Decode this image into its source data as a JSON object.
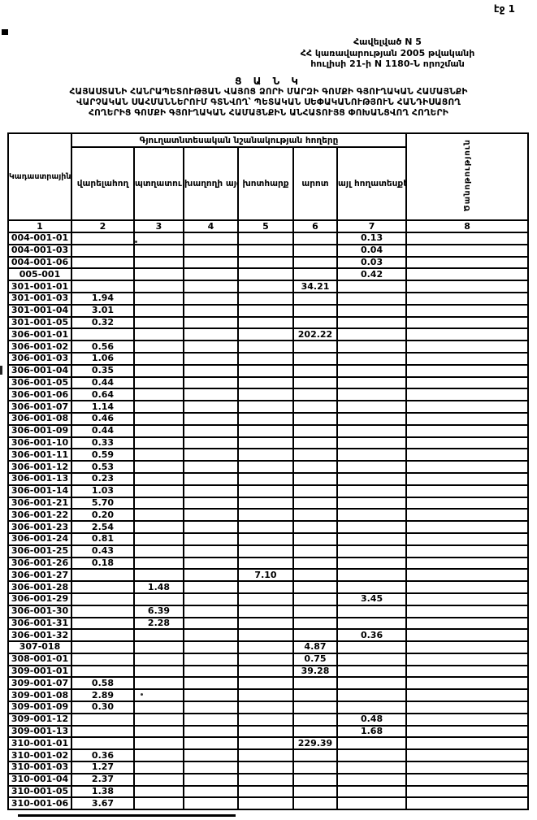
{
  "page": {
    "number_label": "էջ 1"
  },
  "annex": {
    "line1": "Հավելված N 5",
    "line2": "ՀՀ կառավարության 2005 թվականի",
    "line3": "հուլիսի 21-ի N 1180-Ն որոշման"
  },
  "title": {
    "heading": "Ց Ա Ն Կ",
    "line1": "ՀԱՅԱՍՏԱՆԻ ՀԱՆՐԱՊԵՏՈՒԹՅԱՆ ՎԱՅՈՑ ՁՈՐԻ ՄԱՐԶԻ ԳՈՄՔԻ ԳՅՈՒՂԱԿԱՆ ՀԱՄԱՅՆՔԻ",
    "line2": "ՎԱՐՉԱԿԱՆ ՍԱՀՄԱՆՆԵՐՈՒՄ ԳՏՆՎՈՂ՝ ՊԵՏԱԿԱՆ ՍԵՓԱԿԱՆՈՒԹՅՈՒՆ ՀԱՆԴԻՍԱՑՈՂ",
    "line3": "ՀՈՂԵՐԻՑ ԳՈՄՔԻ ԳՅՈՒՂԱԿԱՆ ՀԱՄԱՅՆՔԻՆ ԱՆՀԱՏՈՒՅՑ ՓՈԽԱՆՑՎՈՂ ՀՈՂԵՐԻ",
    "colors": {
      "ink": "#000000",
      "paper": "#ffffff"
    }
  },
  "table": {
    "col1_header": "Կադաստրային ծածկագիր",
    "group_header": "Գյուղատնտեսական նշանակության հողերը",
    "sub_headers": [
      "վարելահող",
      "պտղատու այգի",
      "խաղողի այգի",
      "խոտհարք",
      "արոտ",
      "այլ հողատեսքեր"
    ],
    "note_header": "Ծանոթություն",
    "column_numbers": [
      "1",
      "2",
      "3",
      "4",
      "5",
      "6",
      "7",
      "8"
    ],
    "rows": [
      {
        "code": "004-001-01",
        "values": [
          "",
          "",
          "",
          "",
          "",
          "0.13",
          ""
        ]
      },
      {
        "code": "004-001-03",
        "values": [
          "",
          "",
          "",
          "",
          "",
          "0.04",
          ""
        ]
      },
      {
        "code": "004-001-06",
        "values": [
          "",
          "",
          "",
          "",
          "",
          "0.03",
          ""
        ]
      },
      {
        "code": "005-001",
        "values": [
          "",
          "",
          "",
          "",
          "",
          "0.42",
          ""
        ]
      },
      {
        "code": "301-001-01",
        "values": [
          "",
          "",
          "",
          "",
          "34.21",
          "",
          ""
        ]
      },
      {
        "code": "301-001-03",
        "values": [
          "1.94",
          "",
          "",
          "",
          "",
          "",
          ""
        ]
      },
      {
        "code": "301-001-04",
        "values": [
          "3.01",
          "",
          "",
          "",
          "",
          "",
          ""
        ]
      },
      {
        "code": "301-001-05",
        "values": [
          "0.32",
          "",
          "",
          "",
          "",
          "",
          ""
        ]
      },
      {
        "code": "306-001-01",
        "values": [
          "",
          "",
          "",
          "",
          "202.22",
          "",
          ""
        ]
      },
      {
        "code": "306-001-02",
        "values": [
          "0.56",
          "",
          "",
          "",
          "",
          "",
          ""
        ]
      },
      {
        "code": "306-001-03",
        "values": [
          "1.06",
          "",
          "",
          "",
          "",
          "",
          ""
        ]
      },
      {
        "code": "306-001-04",
        "values": [
          "0.35",
          "",
          "",
          "",
          "",
          "",
          ""
        ]
      },
      {
        "code": "306-001-05",
        "values": [
          "0.44",
          "",
          "",
          "",
          "",
          "",
          ""
        ]
      },
      {
        "code": "306-001-06",
        "values": [
          "0.64",
          "",
          "",
          "",
          "",
          "",
          ""
        ]
      },
      {
        "code": "306-001-07",
        "values": [
          "1.14",
          "",
          "",
          "",
          "",
          "",
          ""
        ]
      },
      {
        "code": "306-001-08",
        "values": [
          "0.46",
          "",
          "",
          "",
          "",
          "",
          ""
        ]
      },
      {
        "code": "306-001-09",
        "values": [
          "0.44",
          "",
          "",
          "",
          "",
          "",
          ""
        ]
      },
      {
        "code": "306-001-10",
        "values": [
          "0.33",
          "",
          "",
          "",
          "",
          "",
          ""
        ]
      },
      {
        "code": "306-001-11",
        "values": [
          "0.59",
          "",
          "",
          "",
          "",
          "",
          ""
        ]
      },
      {
        "code": "306-001-12",
        "values": [
          "0.53",
          "",
          "",
          "",
          "",
          "",
          ""
        ]
      },
      {
        "code": "306-001-13",
        "values": [
          "0.23",
          "",
          "",
          "",
          "",
          "",
          ""
        ]
      },
      {
        "code": "306-001-14",
        "values": [
          "1.03",
          "",
          "",
          "",
          "",
          "",
          ""
        ]
      },
      {
        "code": "306-001-21",
        "values": [
          "5.70",
          "",
          "",
          "",
          "",
          "",
          ""
        ]
      },
      {
        "code": "306-001-22",
        "values": [
          "0.20",
          "",
          "",
          "",
          "",
          "",
          ""
        ]
      },
      {
        "code": "306-001-23",
        "values": [
          "2.54",
          "",
          "",
          "",
          "",
          "",
          ""
        ]
      },
      {
        "code": "306-001-24",
        "values": [
          "0.81",
          "",
          "",
          "",
          "",
          "",
          ""
        ]
      },
      {
        "code": "306-001-25",
        "values": [
          "0.43",
          "",
          "",
          "",
          "",
          "",
          ""
        ]
      },
      {
        "code": "306-001-26",
        "values": [
          "0.18",
          "",
          "",
          "",
          "",
          "",
          ""
        ]
      },
      {
        "code": "306-001-27",
        "values": [
          "",
          "",
          "",
          "7.10",
          "",
          "",
          ""
        ]
      },
      {
        "code": "306-001-28",
        "values": [
          "",
          "1.48",
          "",
          "",
          "",
          "",
          ""
        ]
      },
      {
        "code": "306-001-29",
        "values": [
          "",
          "",
          "",
          "",
          "",
          "3.45",
          ""
        ]
      },
      {
        "code": "306-001-30",
        "values": [
          "",
          "6.39",
          "",
          "",
          "",
          "",
          ""
        ]
      },
      {
        "code": "306-001-31",
        "values": [
          "",
          "2.28",
          "",
          "",
          "",
          "",
          ""
        ]
      },
      {
        "code": "306-001-32",
        "values": [
          "",
          "",
          "",
          "",
          "",
          "0.36",
          ""
        ]
      },
      {
        "code": "307-018",
        "values": [
          "",
          "",
          "",
          "",
          "4.87",
          "",
          ""
        ]
      },
      {
        "code": "308-001-01",
        "values": [
          "",
          "",
          "",
          "",
          "0.75",
          "",
          ""
        ]
      },
      {
        "code": "309-001-01",
        "values": [
          "",
          "",
          "",
          "",
          "39.28",
          "",
          ""
        ]
      },
      {
        "code": "309-001-07",
        "values": [
          "0.58",
          "",
          "",
          "",
          "",
          "",
          ""
        ]
      },
      {
        "code": "309-001-08",
        "values": [
          "2.89",
          "",
          "",
          "",
          "",
          "",
          ""
        ]
      },
      {
        "code": "309-001-09",
        "values": [
          "0.30",
          "",
          "",
          "",
          "",
          "",
          ""
        ]
      },
      {
        "code": "309-001-12",
        "values": [
          "",
          "",
          "",
          "",
          "",
          "0.48",
          ""
        ]
      },
      {
        "code": "309-001-13",
        "values": [
          "",
          "",
          "",
          "",
          "",
          "1.68",
          ""
        ]
      },
      {
        "code": "310-001-01",
        "values": [
          "",
          "",
          "",
          "",
          "229.39",
          "",
          ""
        ]
      },
      {
        "code": "310-001-02",
        "values": [
          "0.36",
          "",
          "",
          "",
          "",
          "",
          ""
        ]
      },
      {
        "code": "310-001-03",
        "values": [
          "1.27",
          "",
          "",
          "",
          "",
          "",
          ""
        ]
      },
      {
        "code": "310-001-04",
        "values": [
          "2.37",
          "",
          "",
          "",
          "",
          "",
          ""
        ]
      },
      {
        "code": "310-001-05",
        "values": [
          "1.38",
          "",
          "",
          "",
          "",
          "",
          ""
        ]
      },
      {
        "code": "310-001-06",
        "values": [
          "3.67",
          "",
          "",
          "",
          "",
          "",
          ""
        ]
      }
    ]
  }
}
